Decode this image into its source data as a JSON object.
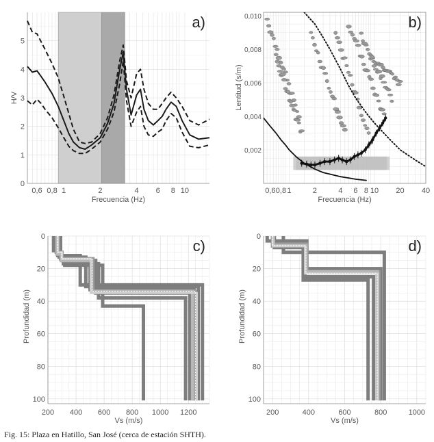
{
  "caption": "Fig. 15: Plaza en Hatillo, San José (cerca de estación SHTH).",
  "chart_data": [
    {
      "id": "a",
      "panel_label": "a)",
      "type": "line",
      "xscale": "log",
      "xlim": [
        0.5,
        16
      ],
      "ylim": [
        0,
        6
      ],
      "xlabel": "Frecuencia (Hz)",
      "ylabel": "H/V",
      "xticks": [
        0.6,
        0.8,
        1,
        2,
        4,
        6,
        8,
        10
      ],
      "xtick_labels": [
        "0,6",
        "0,8",
        "1",
        "2",
        "4",
        "6",
        "8",
        "10"
      ],
      "yticks": [
        0,
        1,
        2,
        3,
        4,
        5
      ],
      "bands": [
        {
          "from": 0.9,
          "to": 2.05,
          "color": "#cfcfcf"
        },
        {
          "from": 2.05,
          "to": 3.2,
          "color": "#a9a9a9"
        }
      ],
      "series": [
        {
          "style": "solid",
          "x": [
            0.5,
            0.55,
            0.6,
            0.65,
            0.7,
            0.8,
            0.9,
            1.0,
            1.1,
            1.2,
            1.35,
            1.5,
            1.7,
            2.0,
            2.3,
            2.6,
            2.9,
            3.1,
            3.3,
            3.6,
            4.0,
            4.3,
            4.6,
            5.0,
            5.5,
            6.0,
            6.5,
            7.0,
            7.7,
            8.5,
            9.5,
            11,
            13,
            16
          ],
          "y": [
            4.1,
            3.9,
            3.95,
            3.75,
            3.55,
            3.15,
            2.7,
            2.2,
            1.75,
            1.45,
            1.25,
            1.2,
            1.35,
            1.6,
            2.1,
            2.8,
            4.0,
            4.6,
            3.3,
            2.4,
            3.1,
            3.3,
            2.6,
            2.2,
            2.05,
            2.2,
            2.35,
            2.6,
            2.85,
            2.7,
            2.2,
            1.7,
            1.55,
            1.6
          ]
        },
        {
          "style": "dashed",
          "x": [
            0.5,
            0.55,
            0.6,
            0.7,
            0.8,
            0.9,
            1.0,
            1.1,
            1.2,
            1.35,
            1.5,
            1.7,
            2.0,
            2.3,
            2.6,
            2.9,
            3.1,
            3.3,
            3.6,
            4.0,
            4.3,
            4.6,
            5.0,
            5.5,
            6.0,
            6.5,
            7.0,
            7.7,
            8.5,
            9.5,
            11,
            13,
            16
          ],
          "y": [
            5.7,
            5.3,
            5.25,
            4.7,
            4.2,
            3.7,
            3.05,
            2.45,
            1.9,
            1.45,
            1.4,
            1.45,
            1.75,
            2.3,
            3.1,
            4.3,
            4.85,
            3.6,
            3.0,
            3.85,
            4.0,
            3.3,
            2.8,
            2.6,
            2.6,
            2.8,
            3.0,
            3.2,
            3.0,
            2.7,
            2.2,
            2.05,
            2.25
          ]
        },
        {
          "style": "dashed",
          "x": [
            0.5,
            0.55,
            0.6,
            0.65,
            0.7,
            0.8,
            0.9,
            1.0,
            1.1,
            1.2,
            1.35,
            1.5,
            1.7,
            2.0,
            2.3,
            2.6,
            2.9,
            3.1,
            3.3,
            3.6,
            4.0,
            4.3,
            4.6,
            5.0,
            5.5,
            6.0,
            6.5,
            7.0,
            7.7,
            8.5,
            9.5,
            11,
            13,
            16
          ],
          "y": [
            2.9,
            2.75,
            2.95,
            2.8,
            2.6,
            2.3,
            1.95,
            1.6,
            1.3,
            1.15,
            1.05,
            1.05,
            1.2,
            1.45,
            1.9,
            2.5,
            3.5,
            4.3,
            2.9,
            2.0,
            2.5,
            2.7,
            2.0,
            1.7,
            1.65,
            1.8,
            1.9,
            2.2,
            2.45,
            2.3,
            1.8,
            1.3,
            1.25,
            1.35
          ]
        }
      ]
    },
    {
      "id": "b",
      "panel_label": "b)",
      "type": "scatter",
      "xscale": "log",
      "xlim": [
        0.5,
        40
      ],
      "ylim": [
        0,
        0.0102
      ],
      "xlabel": "Frecuencia (Hz)",
      "ylabel": "Lentitud (s/m)",
      "xticks": [
        0.6,
        0.8,
        1,
        2,
        4,
        6,
        8,
        10,
        20,
        40
      ],
      "xtick_labels": [
        "0,6",
        "0,8",
        "1",
        "2",
        "4",
        "6",
        "8",
        "10",
        "20",
        "40"
      ],
      "yticks": [
        0.002,
        0.004,
        0.006,
        0.008,
        0.01
      ],
      "ytick_labels": [
        "0,002",
        "0,004",
        "0,006",
        "0,008",
        "0,010"
      ],
      "dispersion_points": {
        "x": [
          1.4,
          1.6,
          1.8,
          2.0,
          2.3,
          2.6,
          3.0,
          3.4,
          3.8,
          4.2,
          4.7,
          5.2,
          5.8,
          6.4,
          7.0,
          7.8,
          8.6,
          9.5,
          10.5,
          11.5,
          12.5,
          13.5
        ],
        "y": [
          0.0012,
          0.00115,
          0.0011,
          0.0011,
          0.0012,
          0.0013,
          0.0013,
          0.0014,
          0.0015,
          0.0014,
          0.0013,
          0.0014,
          0.0016,
          0.0017,
          0.0018,
          0.002,
          0.0023,
          0.0026,
          0.003,
          0.0033,
          0.0036,
          0.0039
        ]
      },
      "limit_curves": [
        {
          "style": "solid",
          "x": [
            0.5,
            0.6,
            0.7,
            0.8,
            0.9,
            1.0,
            1.2,
            1.5,
            2.0,
            2.5,
            3.0,
            4.0,
            5.0,
            6.0,
            8.0
          ],
          "y": [
            0.0039,
            0.0034,
            0.003,
            0.0026,
            0.0023,
            0.002,
            0.0016,
            0.0012,
            0.00085,
            0.00065,
            0.00055,
            0.0004,
            0.00032,
            0.00025,
            0.00018
          ]
        },
        {
          "style": "dotted",
          "x": [
            1.5,
            2.0,
            2.5,
            3.0,
            4.0,
            5.0,
            6.0,
            8.0,
            10,
            14,
            20,
            30,
            40
          ],
          "y": [
            0.0102,
            0.0095,
            0.0087,
            0.008,
            0.0068,
            0.0058,
            0.0051,
            0.0042,
            0.0036,
            0.0028,
            0.002,
            0.0014,
            0.001
          ]
        }
      ]
    },
    {
      "id": "c",
      "panel_label": "c)",
      "type": "line",
      "xlim": [
        200,
        1350
      ],
      "ylim": [
        0,
        103
      ],
      "xlabel": "Vs (m/s)",
      "ylabel": "Profundidad (m)",
      "xticks": [
        200,
        400,
        600,
        800,
        1000,
        1200
      ],
      "yticks": [
        0,
        20,
        40,
        60,
        80,
        100
      ],
      "profiles": [
        {
          "color": "#7e7e7e",
          "vs": [
            240,
            270,
            430,
            1300
          ],
          "depth": [
            9,
            12,
            30
          ]
        },
        {
          "color": "#7e7e7e",
          "vs": [
            250,
            280,
            470,
            1270
          ],
          "depth": [
            8,
            13,
            31
          ]
        },
        {
          "color": "#7e7e7e",
          "vs": [
            260,
            290,
            500,
            1240
          ],
          "depth": [
            10,
            14,
            33
          ]
        },
        {
          "color": "#7e7e7e",
          "vs": [
            270,
            300,
            540,
            1210
          ],
          "depth": [
            11,
            15,
            35
          ]
        },
        {
          "color": "#7e7e7e",
          "vs": [
            280,
            310,
            560,
            1180
          ],
          "depth": [
            12,
            17,
            38
          ]
        },
        {
          "color": "#7e7e7e",
          "vs": [
            290,
            320,
            590,
            880
          ],
          "depth": [
            13,
            18,
            43
          ]
        },
        {
          "color": "#9a9a9a",
          "vs": [
            275,
            300,
            520,
            1250
          ],
          "depth": [
            10,
            14,
            34
          ]
        },
        {
          "color": "#b8b8b8",
          "vs": [
            265,
            295,
            510,
            1230
          ],
          "depth": [
            11,
            15,
            34
          ]
        },
        {
          "color": "#d0d0d0",
          "vs": [
            270,
            300,
            505,
            1260
          ],
          "depth": [
            10,
            14,
            35
          ]
        },
        {
          "color": "#ffffff",
          "vs": [
            268,
            298,
            515,
            1250
          ],
          "depth": [
            10,
            14,
            34
          ]
        }
      ]
    },
    {
      "id": "d",
      "panel_label": "d)",
      "type": "line",
      "xlim": [
        150,
        1050
      ],
      "ylim": [
        0,
        103
      ],
      "xlabel": "Vs (m/s)",
      "ylabel": "Profundidad (m)",
      "xticks": [
        200,
        400,
        600,
        800,
        1000
      ],
      "yticks": [
        0,
        20,
        40,
        60,
        80,
        100
      ],
      "profiles": [
        {
          "color": "#7e7e7e",
          "vs": [
            260,
            820
          ],
          "depth": [
            10
          ]
        },
        {
          "color": "#7e7e7e",
          "vs": [
            170,
            390,
            800
          ],
          "depth": [
            3,
            20
          ]
        },
        {
          "color": "#7e7e7e",
          "vs": [
            200,
            380,
            760
          ],
          "depth": [
            6,
            25
          ]
        },
        {
          "color": "#7e7e7e",
          "vs": [
            210,
            370,
            730
          ],
          "depth": [
            7,
            27
          ]
        },
        {
          "color": "#9a9a9a",
          "vs": [
            200,
            390,
            790
          ],
          "depth": [
            5,
            22
          ]
        },
        {
          "color": "#b8b8b8",
          "vs": [
            205,
            385,
            780
          ],
          "depth": [
            6,
            22
          ]
        },
        {
          "color": "#d0d0d0",
          "vs": [
            200,
            380,
            785
          ],
          "depth": [
            6,
            23
          ]
        },
        {
          "color": "#ffffff",
          "vs": [
            200,
            385,
            780
          ],
          "depth": [
            6,
            23
          ]
        }
      ]
    }
  ]
}
